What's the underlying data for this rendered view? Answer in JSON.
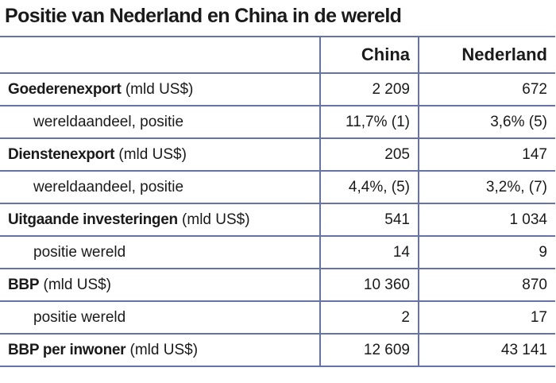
{
  "header": {
    "title": "Positie van Nederland en China in de wereld"
  },
  "table": {
    "columns": [
      "China",
      "Nederland"
    ],
    "rows": [
      {
        "label": "Goederenexport",
        "unit": "(mld US$)",
        "cells": [
          "2 209",
          "672"
        ]
      },
      {
        "sublabel": "wereldaandeel, positie",
        "cells": [
          "11,7% (1)",
          "3,6% (5)"
        ]
      },
      {
        "label": "Dienstenexport",
        "unit": "(mld US$)",
        "cells": [
          "205",
          "147"
        ]
      },
      {
        "sublabel": "wereldaandeel, positie",
        "cells": [
          "4,4%, (5)",
          "3,2%, (7)"
        ]
      },
      {
        "label": "Uitgaande investeringen",
        "unit": "(mld US$)",
        "cells": [
          "541",
          "1 034"
        ]
      },
      {
        "sublabel": "positie wereld",
        "cells": [
          "14",
          "9"
        ]
      },
      {
        "label": "BBP",
        "unit": "(mld US$)",
        "cells": [
          "10 360",
          "870"
        ]
      },
      {
        "sublabel": "positie wereld",
        "cells": [
          "2",
          "17"
        ]
      },
      {
        "label": "BBP per inwoner",
        "unit": "(mld US$)",
        "cells": [
          "12 609",
          "43 141"
        ]
      }
    ]
  }
}
